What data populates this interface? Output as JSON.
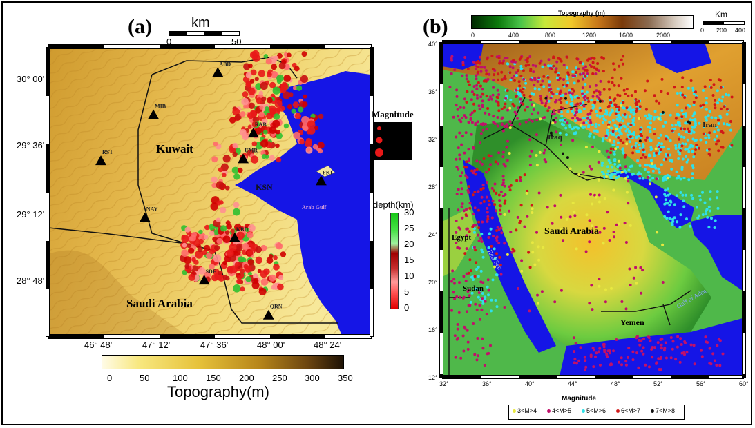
{
  "panel_a": {
    "label": "(a)",
    "scalebar": {
      "unit": "km",
      "ticks": [
        "0",
        "50"
      ]
    },
    "lat_ticks": [
      "30° 00'",
      "29° 36'",
      "29° 12'",
      "28° 48'"
    ],
    "lon_ticks": [
      "46° 48'",
      "47° 12'",
      "47° 36'",
      "48° 00'",
      "48° 24'"
    ],
    "places": {
      "kuwait": "Kuwait",
      "saudi": "Saudi Arabia",
      "gulf": "Arab Gulf",
      "ksn": "KSN"
    },
    "stations": [
      {
        "code": "ABD",
        "lon": 47.65,
        "lat": 30.05
      },
      {
        "code": "MIB",
        "lon": 47.27,
        "lat": 29.82
      },
      {
        "code": "RAB",
        "lon": 47.86,
        "lat": 29.72
      },
      {
        "code": "RST",
        "lon": 46.96,
        "lat": 29.57
      },
      {
        "code": "UMR",
        "lon": 47.8,
        "lat": 29.58
      },
      {
        "code": "FKI",
        "lon": 48.26,
        "lat": 29.46
      },
      {
        "code": "NAY",
        "lon": 47.22,
        "lat": 29.26
      },
      {
        "code": "KBD",
        "lon": 47.75,
        "lat": 29.15
      },
      {
        "code": "SDF",
        "lon": 47.57,
        "lat": 28.92
      },
      {
        "code": "QRN",
        "lon": 47.95,
        "lat": 28.73
      }
    ],
    "magnitude_legend": {
      "title": "Magnitude"
    },
    "depth_legend": {
      "title": "depth(km)",
      "ticks": [
        "30",
        "25",
        "20",
        "15",
        "10",
        "5",
        "0"
      ]
    },
    "topo_colorbar": {
      "title": "Topography(m)",
      "ticks": [
        "0",
        "50",
        "100",
        "150",
        "200",
        "250",
        "300",
        "350"
      ]
    }
  },
  "panel_b": {
    "label": "(b)",
    "topo_colorbar": {
      "title": "Topography (m)",
      "ticks": [
        "0",
        "400",
        "800",
        "1200",
        "1600",
        "2000"
      ]
    },
    "scalebar": {
      "unit": "Km",
      "ticks": [
        "0",
        "200",
        "400"
      ]
    },
    "lat_ticks": [
      "40°",
      "36°",
      "32°",
      "28°",
      "24°",
      "20°",
      "16°",
      "12°"
    ],
    "lon_ticks": [
      "32°",
      "36°",
      "40°",
      "44°",
      "48°",
      "52°",
      "56°",
      "60°"
    ],
    "places": {
      "iraq": "Iraq",
      "iran": "Iran",
      "saudi": "Saudi Arabia",
      "egypt": "Egypt",
      "sudan": "Sudan",
      "yemen": "Yemen",
      "redsea": "Red Sea",
      "gulf_aden": "Gulf of Aden"
    },
    "magnitude_legend": {
      "title": "Magnitude",
      "items": [
        {
          "label": "3<M>4",
          "color": "#e8e840"
        },
        {
          "label": "4<M>5",
          "color": "#c0106a"
        },
        {
          "label": "5<M>6",
          "color": "#30e0e8"
        },
        {
          "label": "6<M>7",
          "color": "#d01818"
        },
        {
          "label": "7<M>8",
          "color": "#101010"
        }
      ]
    }
  }
}
